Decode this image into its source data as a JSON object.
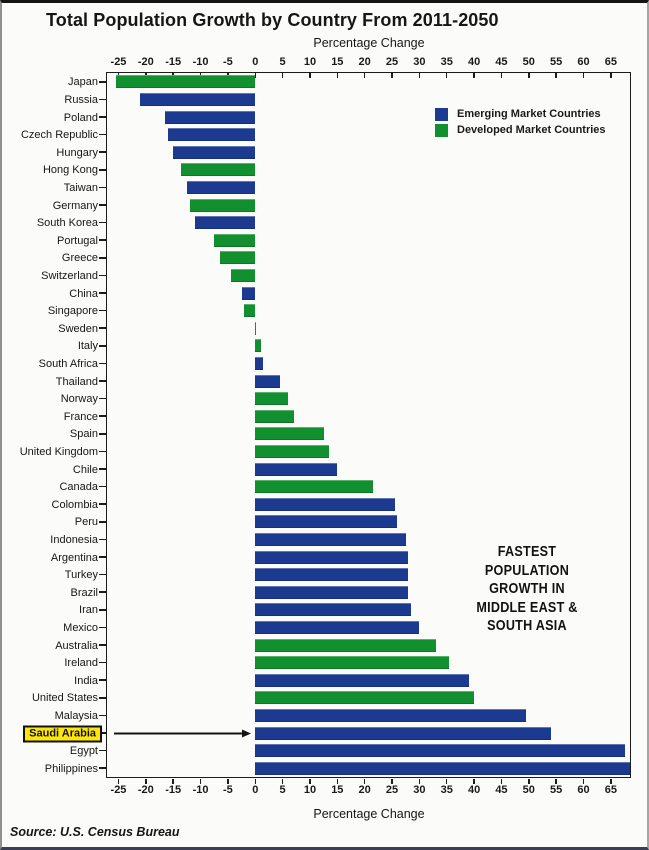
{
  "page": {
    "title": "Total Population Growth by Country From 2011-2050",
    "source": "Source: U.S. Census Bureau"
  },
  "axis": {
    "top_label": "Percentage Change",
    "bottom_label": "Percentage Change"
  },
  "annotation": {
    "lines": [
      "FASTEST",
      "POPULATION",
      "GROWTH IN",
      "MIDDLE EAST &",
      "SOUTH ASIA"
    ]
  },
  "highlight": {
    "country": "Saudi Arabia",
    "box_color": "#ffe60a"
  },
  "chart_data": {
    "type": "bar",
    "orientation": "horizontal",
    "title": "Total Population Growth by Country From 2011-2050",
    "xlabel": "Percentage Change",
    "xlim": [
      -27.1,
      68.5
    ],
    "xticks": [
      -25,
      -20,
      -15,
      -10,
      -5,
      0,
      5,
      10,
      15,
      20,
      25,
      30,
      35,
      40,
      45,
      50,
      55,
      60,
      65
    ],
    "grid": false,
    "legend_position": "top-right-inside",
    "groups": {
      "emerging": {
        "label": "Emerging Market Countries",
        "color": "#1c3a90"
      },
      "developed": {
        "label": "Developed Market Countries",
        "color": "#12902f"
      }
    },
    "countries": [
      {
        "name": "Japan",
        "value": -25.5,
        "group": "developed"
      },
      {
        "name": "Russia",
        "value": -21,
        "group": "emerging"
      },
      {
        "name": "Poland",
        "value": -16.5,
        "group": "emerging"
      },
      {
        "name": "Czech Republic",
        "value": -16,
        "group": "emerging"
      },
      {
        "name": "Hungary",
        "value": -15,
        "group": "emerging"
      },
      {
        "name": "Hong Kong",
        "value": -13.5,
        "group": "developed"
      },
      {
        "name": "Taiwan",
        "value": -12.5,
        "group": "emerging"
      },
      {
        "name": "Germany",
        "value": -12,
        "group": "developed"
      },
      {
        "name": "South Korea",
        "value": -11,
        "group": "emerging"
      },
      {
        "name": "Portugal",
        "value": -7.5,
        "group": "developed"
      },
      {
        "name": "Greece",
        "value": -6.5,
        "group": "developed"
      },
      {
        "name": "Switzerland",
        "value": -4.5,
        "group": "developed"
      },
      {
        "name": "China",
        "value": -2.5,
        "group": "emerging"
      },
      {
        "name": "Singapore",
        "value": -2,
        "group": "developed"
      },
      {
        "name": "Sweden",
        "value": 0.2,
        "group": "developed"
      },
      {
        "name": "Italy",
        "value": 1,
        "group": "developed"
      },
      {
        "name": "South Africa",
        "value": 1.5,
        "group": "emerging"
      },
      {
        "name": "Thailand",
        "value": 4.5,
        "group": "emerging"
      },
      {
        "name": "Norway",
        "value": 6,
        "group": "developed"
      },
      {
        "name": "France",
        "value": 7,
        "group": "developed"
      },
      {
        "name": "Spain",
        "value": 12.5,
        "group": "developed"
      },
      {
        "name": "United Kingdom",
        "value": 13.5,
        "group": "developed"
      },
      {
        "name": "Chile",
        "value": 15,
        "group": "emerging"
      },
      {
        "name": "Canada",
        "value": 21.5,
        "group": "developed"
      },
      {
        "name": "Colombia",
        "value": 25.5,
        "group": "emerging"
      },
      {
        "name": "Peru",
        "value": 26,
        "group": "emerging"
      },
      {
        "name": "Indonesia",
        "value": 27.5,
        "group": "emerging"
      },
      {
        "name": "Argentina",
        "value": 28,
        "group": "emerging"
      },
      {
        "name": "Turkey",
        "value": 28,
        "group": "emerging"
      },
      {
        "name": "Brazil",
        "value": 28,
        "group": "emerging"
      },
      {
        "name": "Iran",
        "value": 28.5,
        "group": "emerging"
      },
      {
        "name": "Mexico",
        "value": 30,
        "group": "emerging"
      },
      {
        "name": "Australia",
        "value": 33,
        "group": "developed"
      },
      {
        "name": "Ireland",
        "value": 35.5,
        "group": "developed"
      },
      {
        "name": "India",
        "value": 39,
        "group": "emerging"
      },
      {
        "name": "United States",
        "value": 40,
        "group": "developed"
      },
      {
        "name": "Malaysia",
        "value": 49.5,
        "group": "emerging"
      },
      {
        "name": "Saudi Arabia",
        "value": 54,
        "group": "emerging"
      },
      {
        "name": "Egypt",
        "value": 67.5,
        "group": "emerging"
      },
      {
        "name": "Philippines",
        "value": 68.5,
        "group": "emerging"
      }
    ]
  }
}
